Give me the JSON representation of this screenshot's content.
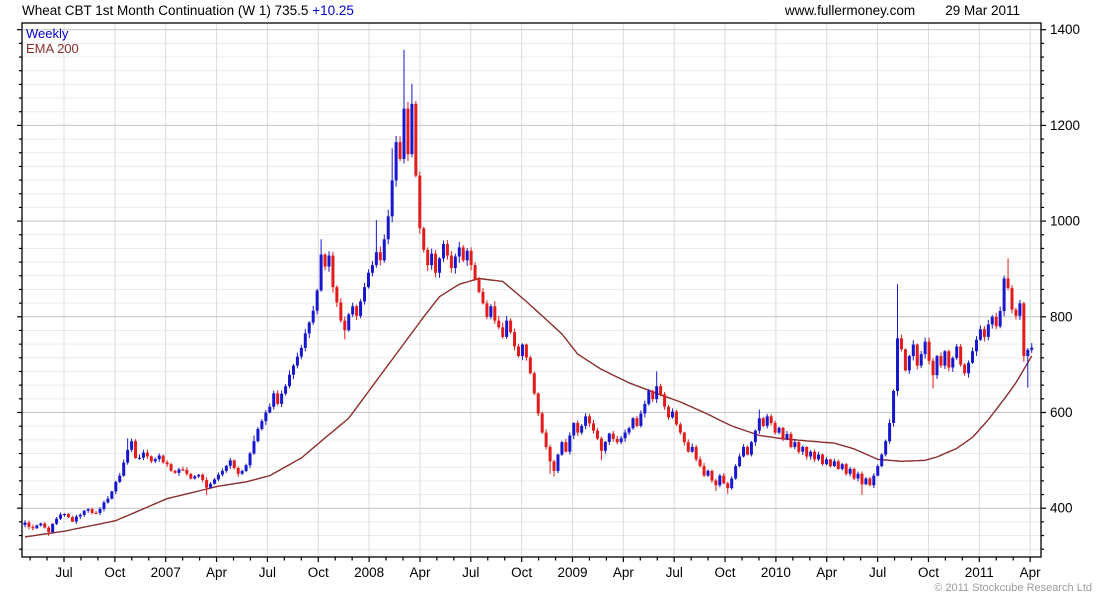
{
  "header": {
    "title": "Wheat CBT 1st Month Continuation (W 1)",
    "last_price": "735.5",
    "change": "+10.25",
    "site": "www.fullermoney.com",
    "date": "29 Mar 2011"
  },
  "legend": {
    "series_label": "Weekly",
    "overlay_label": "EMA 200"
  },
  "footer": {
    "copyright": "© 2011 Stockcube Research Ltd"
  },
  "colors": {
    "up": "#1717cf",
    "down": "#e31b1b",
    "ema": "#8b2e2e",
    "grid_major": "#c4c4c4",
    "grid_minor": "#ececec",
    "grid_vertical": "#dcdcdc",
    "frame": "#000000",
    "tick": "#000000",
    "label": "#000000",
    "accent_blue": "#0000cc",
    "copyright_gray": "#9b9b9b"
  },
  "chart_data": {
    "type": "candlestick",
    "interval": "weekly",
    "title": "Wheat CBT 1st Month Continuation (W 1) 735.5 +10.25",
    "legend_entries": [
      "Weekly",
      "EMA 200"
    ],
    "y_axis": {
      "tick_labels": [
        400,
        600,
        800,
        1000,
        1200,
        1400
      ],
      "minor_divisions_per_major": 7,
      "domain": [
        298,
        1414
      ],
      "side": "right",
      "grid": true
    },
    "x_axis": {
      "tick_labels": [
        "Jul",
        "Oct",
        "2007",
        "Apr",
        "Jul",
        "Oct",
        "2008",
        "Apr",
        "Jul",
        "Oct",
        "2009",
        "Apr",
        "Jul",
        "Oct",
        "2010",
        "Apr",
        "Jul",
        "Oct",
        "2011",
        "Apr"
      ],
      "months_per_label": 3,
      "grid": true
    },
    "weeks": 256,
    "close_anchors": [
      [
        0,
        370
      ],
      [
        2,
        358
      ],
      [
        4,
        368
      ],
      [
        6,
        350
      ],
      [
        8,
        378
      ],
      [
        10,
        388
      ],
      [
        12,
        372
      ],
      [
        14,
        386
      ],
      [
        16,
        398
      ],
      [
        18,
        390
      ],
      [
        20,
        412
      ],
      [
        22,
        435
      ],
      [
        24,
        468
      ],
      [
        26,
        522
      ],
      [
        27,
        540
      ],
      [
        28,
        505
      ],
      [
        30,
        516
      ],
      [
        32,
        498
      ],
      [
        34,
        510
      ],
      [
        36,
        492
      ],
      [
        38,
        474
      ],
      [
        40,
        480
      ],
      [
        42,
        462
      ],
      [
        44,
        470
      ],
      [
        46,
        443
      ],
      [
        48,
        460
      ],
      [
        50,
        478
      ],
      [
        52,
        500
      ],
      [
        54,
        472
      ],
      [
        56,
        490
      ],
      [
        58,
        540
      ],
      [
        60,
        582
      ],
      [
        62,
        612
      ],
      [
        63,
        640
      ],
      [
        64,
        618
      ],
      [
        66,
        655
      ],
      [
        68,
        698
      ],
      [
        70,
        735
      ],
      [
        72,
        788
      ],
      [
        74,
        855
      ],
      [
        75,
        930
      ],
      [
        76,
        905
      ],
      [
        77,
        928
      ],
      [
        78,
        862
      ],
      [
        79,
        830
      ],
      [
        80,
        792
      ],
      [
        81,
        772
      ],
      [
        82,
        805
      ],
      [
        83,
        822
      ],
      [
        84,
        802
      ],
      [
        85,
        832
      ],
      [
        86,
        862
      ],
      [
        87,
        892
      ],
      [
        88,
        908
      ],
      [
        89,
        935
      ],
      [
        90,
        918
      ],
      [
        91,
        962
      ],
      [
        92,
        1010
      ],
      [
        93,
        1085
      ],
      [
        94,
        1165
      ],
      [
        95,
        1130
      ],
      [
        96,
        1235
      ],
      [
        97,
        1140
      ],
      [
        98,
        1245
      ],
      [
        99,
        1095
      ],
      [
        100,
        985
      ],
      [
        101,
        940
      ],
      [
        102,
        908
      ],
      [
        103,
        932
      ],
      [
        104,
        892
      ],
      [
        105,
        922
      ],
      [
        106,
        952
      ],
      [
        107,
        928
      ],
      [
        108,
        902
      ],
      [
        109,
        926
      ],
      [
        110,
        945
      ],
      [
        111,
        918
      ],
      [
        112,
        938
      ],
      [
        113,
        908
      ],
      [
        114,
        878
      ],
      [
        115,
        852
      ],
      [
        116,
        828
      ],
      [
        117,
        800
      ],
      [
        118,
        822
      ],
      [
        119,
        792
      ],
      [
        120,
        778
      ],
      [
        121,
        758
      ],
      [
        122,
        792
      ],
      [
        123,
        768
      ],
      [
        124,
        738
      ],
      [
        125,
        718
      ],
      [
        126,
        742
      ],
      [
        127,
        715
      ],
      [
        128,
        682
      ],
      [
        129,
        640
      ],
      [
        130,
        598
      ],
      [
        131,
        558
      ],
      [
        132,
        528
      ],
      [
        133,
        498
      ],
      [
        134,
        478
      ],
      [
        135,
        512
      ],
      [
        136,
        538
      ],
      [
        137,
        518
      ],
      [
        138,
        552
      ],
      [
        139,
        578
      ],
      [
        140,
        558
      ],
      [
        141,
        572
      ],
      [
        142,
        592
      ],
      [
        144,
        562
      ],
      [
        146,
        520
      ],
      [
        148,
        556
      ],
      [
        150,
        538
      ],
      [
        152,
        558
      ],
      [
        154,
        588
      ],
      [
        155,
        572
      ],
      [
        156,
        598
      ],
      [
        157,
        618
      ],
      [
        158,
        645
      ],
      [
        159,
        628
      ],
      [
        160,
        655
      ],
      [
        161,
        638
      ],
      [
        162,
        612
      ],
      [
        163,
        590
      ],
      [
        164,
        602
      ],
      [
        165,
        575
      ],
      [
        166,
        558
      ],
      [
        167,
        538
      ],
      [
        168,
        518
      ],
      [
        169,
        528
      ],
      [
        170,
        502
      ],
      [
        171,
        488
      ],
      [
        172,
        468
      ],
      [
        173,
        478
      ],
      [
        174,
        458
      ],
      [
        175,
        448
      ],
      [
        176,
        468
      ],
      [
        177,
        452
      ],
      [
        178,
        442
      ],
      [
        179,
        462
      ],
      [
        180,
        488
      ],
      [
        181,
        508
      ],
      [
        182,
        528
      ],
      [
        183,
        512
      ],
      [
        184,
        538
      ],
      [
        185,
        562
      ],
      [
        186,
        588
      ],
      [
        187,
        572
      ],
      [
        188,
        592
      ],
      [
        189,
        578
      ],
      [
        190,
        558
      ],
      [
        191,
        568
      ],
      [
        192,
        545
      ],
      [
        193,
        555
      ],
      [
        194,
        528
      ],
      [
        195,
        538
      ],
      [
        196,
        518
      ],
      [
        197,
        528
      ],
      [
        198,
        508
      ],
      [
        199,
        518
      ],
      [
        200,
        502
      ],
      [
        201,
        512
      ],
      [
        202,
        492
      ],
      [
        203,
        502
      ],
      [
        204,
        488
      ],
      [
        205,
        498
      ],
      [
        206,
        482
      ],
      [
        207,
        492
      ],
      [
        208,
        472
      ],
      [
        209,
        482
      ],
      [
        210,
        462
      ],
      [
        211,
        472
      ],
      [
        212,
        450
      ],
      [
        213,
        462
      ],
      [
        214,
        448
      ],
      [
        215,
        468
      ],
      [
        216,
        488
      ],
      [
        217,
        512
      ],
      [
        218,
        540
      ],
      [
        219,
        578
      ],
      [
        220,
        645
      ],
      [
        221,
        755
      ],
      [
        222,
        732
      ],
      [
        223,
        688
      ],
      [
        224,
        718
      ],
      [
        225,
        742
      ],
      [
        226,
        698
      ],
      [
        227,
        722
      ],
      [
        228,
        748
      ],
      [
        229,
        708
      ],
      [
        230,
        678
      ],
      [
        231,
        718
      ],
      [
        232,
        698
      ],
      [
        233,
        728
      ],
      [
        234,
        694
      ],
      [
        235,
        714
      ],
      [
        236,
        738
      ],
      [
        237,
        700
      ],
      [
        238,
        682
      ],
      [
        239,
        704
      ],
      [
        240,
        728
      ],
      [
        241,
        752
      ],
      [
        242,
        774
      ],
      [
        243,
        758
      ],
      [
        244,
        784
      ],
      [
        245,
        800
      ],
      [
        246,
        780
      ],
      [
        247,
        812
      ],
      [
        248,
        880
      ],
      [
        249,
        860
      ],
      [
        250,
        815
      ],
      [
        251,
        802
      ],
      [
        252,
        828
      ],
      [
        253,
        718
      ],
      [
        254,
        731
      ],
      [
        255,
        735.5
      ]
    ],
    "ema_anchors": [
      [
        0,
        340
      ],
      [
        10,
        352
      ],
      [
        23,
        374
      ],
      [
        36,
        420
      ],
      [
        49,
        446
      ],
      [
        56,
        455
      ],
      [
        62,
        468
      ],
      [
        70,
        505
      ],
      [
        75,
        540
      ],
      [
        82,
        588
      ],
      [
        88,
        655
      ],
      [
        94,
        722
      ],
      [
        101,
        800
      ],
      [
        105,
        842
      ],
      [
        110,
        868
      ],
      [
        115,
        880
      ],
      [
        121,
        874
      ],
      [
        127,
        832
      ],
      [
        131,
        802
      ],
      [
        136,
        764
      ],
      [
        140,
        722
      ],
      [
        146,
        690
      ],
      [
        153,
        662
      ],
      [
        160,
        640
      ],
      [
        166,
        622
      ],
      [
        172,
        600
      ],
      [
        179,
        572
      ],
      [
        186,
        552
      ],
      [
        192,
        545
      ],
      [
        199,
        540
      ],
      [
        205,
        536
      ],
      [
        210,
        524
      ],
      [
        216,
        502
      ],
      [
        222,
        498
      ],
      [
        228,
        500
      ],
      [
        231,
        507
      ],
      [
        236,
        525
      ],
      [
        240,
        548
      ],
      [
        244,
        585
      ],
      [
        248,
        628
      ],
      [
        251,
        662
      ],
      [
        253,
        690
      ],
      [
        255,
        718
      ]
    ],
    "wick_overrides": {
      "6": {
        "low": 342
      },
      "26": {
        "high": 546
      },
      "46": {
        "low": 428
      },
      "58": {
        "high": 552
      },
      "75": {
        "high": 962
      },
      "81": {
        "low": 753
      },
      "89": {
        "high": 1002
      },
      "93": {
        "high": 1152
      },
      "96": {
        "high": 1358
      },
      "98": {
        "high": 1287
      },
      "133": {
        "low": 472
      },
      "134": {
        "low": 466
      },
      "146": {
        "low": 500
      },
      "160": {
        "high": 686
      },
      "175": {
        "low": 436
      },
      "178": {
        "low": 430
      },
      "186": {
        "high": 606
      },
      "212": {
        "low": 428
      },
      "221": {
        "high": 868
      },
      "230": {
        "low": 650
      },
      "249": {
        "high": 922
      },
      "253": {
        "low": 706
      },
      "254": {
        "low": 652
      }
    }
  }
}
